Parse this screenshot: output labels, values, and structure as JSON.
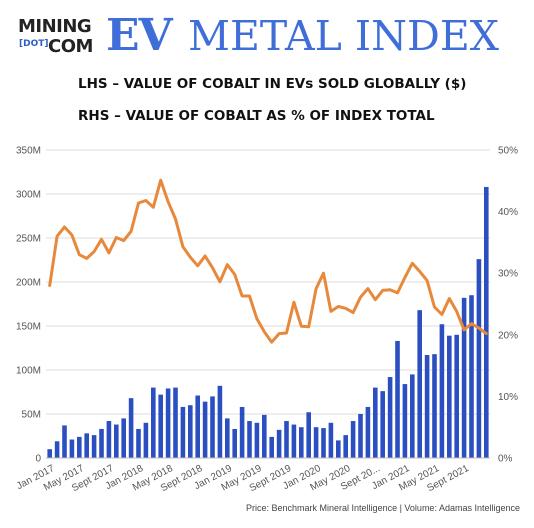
{
  "logo": {
    "mining": "MINING",
    "dot": "[DOT]",
    "com": "COM",
    "ev": "EV",
    "metal_index": "METAL INDEX"
  },
  "subtitles": {
    "line1": "LHS – VALUE OF COBALT IN EVs SOLD GLOBALLY ($)",
    "line2": "RHS – VALUE OF COBALT AS % OF INDEX TOTAL"
  },
  "credit": "Price: Benchmark Mineral Intelligence | Volume: Adamas Intelligence",
  "colors": {
    "bar": "#2b4fc0",
    "line": "#e8883a",
    "grid": "#dddddd"
  },
  "chart_data": {
    "type": "bar+line",
    "months": [
      "Jan 2017",
      "Feb 2017",
      "Mar 2017",
      "Apr 2017",
      "May 2017",
      "Jun 2017",
      "Jul 2017",
      "Aug 2017",
      "Sept 2017",
      "Oct 2017",
      "Nov 2017",
      "Dec 2017",
      "Jan 2018",
      "Feb 2018",
      "Mar 2018",
      "Apr 2018",
      "May 2018",
      "Jun 2018",
      "Jul 2018",
      "Aug 2018",
      "Sept 2018",
      "Oct 2018",
      "Nov 2018",
      "Dec 2018",
      "Jan 2019",
      "Feb 2019",
      "Mar 2019",
      "Apr 2019",
      "May 2019",
      "Jun 2019",
      "Jul 2019",
      "Aug 2019",
      "Sept 2019",
      "Oct 2019",
      "Nov 2019",
      "Dec 2019",
      "Jan 2020",
      "Feb 2020",
      "Mar 2020",
      "Apr 2020",
      "May 2020",
      "Jun 2020",
      "Jul 2020",
      "Aug 2020",
      "Sept 2020",
      "Oct 2020",
      "Nov 2020",
      "Dec 2020",
      "Jan 2021",
      "Feb 2021",
      "Mar 2021",
      "Apr 2021",
      "May 2021",
      "Jun 2021",
      "Jul 2021",
      "Aug 2021",
      "Sept 2021",
      "Oct 2021",
      "Nov 2021",
      "Dec 2021"
    ],
    "x_tick_labels": [
      "Jan 2017",
      "May 2017",
      "Sept 2017",
      "Jan 2018",
      "May 2018",
      "Sept 2018",
      "Jan 2019",
      "May 2019",
      "Sept 2019",
      "Jan 2020",
      "May 2020",
      "Sept 20...",
      "Jan 2021",
      "May 2021",
      "Sept 2021"
    ],
    "x_tick_indices": [
      0,
      4,
      8,
      12,
      16,
      20,
      24,
      28,
      32,
      36,
      40,
      44,
      48,
      52,
      56
    ],
    "series": [
      {
        "name": "Value of cobalt in EVs sold globally ($)",
        "type": "bar",
        "axis": "left",
        "values": [
          10,
          19,
          37,
          21,
          24,
          28,
          26,
          33,
          42,
          38,
          45,
          68,
          33,
          40,
          80,
          72,
          79,
          80,
          58,
          60,
          71,
          64,
          70,
          82,
          45,
          33,
          58,
          42,
          40,
          49,
          24,
          32,
          42,
          38,
          35,
          52,
          35,
          34,
          40,
          20,
          26,
          42,
          50,
          58,
          80,
          76,
          92,
          133,
          84,
          95,
          168,
          117,
          118,
          152,
          139,
          140,
          182,
          185,
          226,
          308
        ]
      },
      {
        "name": "Value of cobalt as % of index total",
        "type": "line",
        "axis": "right",
        "values": [
          28,
          36,
          37.5,
          36.2,
          33,
          32.4,
          33.5,
          35.5,
          33.3,
          35.8,
          35.3,
          36.8,
          41.4,
          41.8,
          40.7,
          45.1,
          41.6,
          38.8,
          34.3,
          32.6,
          31.2,
          32.8,
          30.9,
          28.6,
          31.4,
          29.8,
          26.3,
          26.3,
          22.6,
          20.5,
          18.8,
          20.2,
          20.3,
          25.3,
          21.4,
          21.3,
          27.5,
          30,
          23.8,
          24.6,
          24.3,
          23.6,
          26.1,
          27.5,
          25.7,
          27.2,
          27.3,
          26.8,
          29.3,
          31.6,
          30.3,
          28.8,
          24.5,
          23.3,
          25.9,
          23.8,
          20.8,
          21.8,
          21.1,
          20.2
        ]
      }
    ],
    "y_left": {
      "min": 0,
      "max": 350,
      "ticks": [
        "0",
        "50M",
        "100M",
        "150M",
        "200M",
        "250M",
        "300M",
        "350M"
      ]
    },
    "y_right": {
      "min": 0,
      "max": 50,
      "ticks": [
        "0%",
        "10%",
        "20%",
        "30%",
        "40%",
        "50%"
      ]
    },
    "grid": true
  }
}
